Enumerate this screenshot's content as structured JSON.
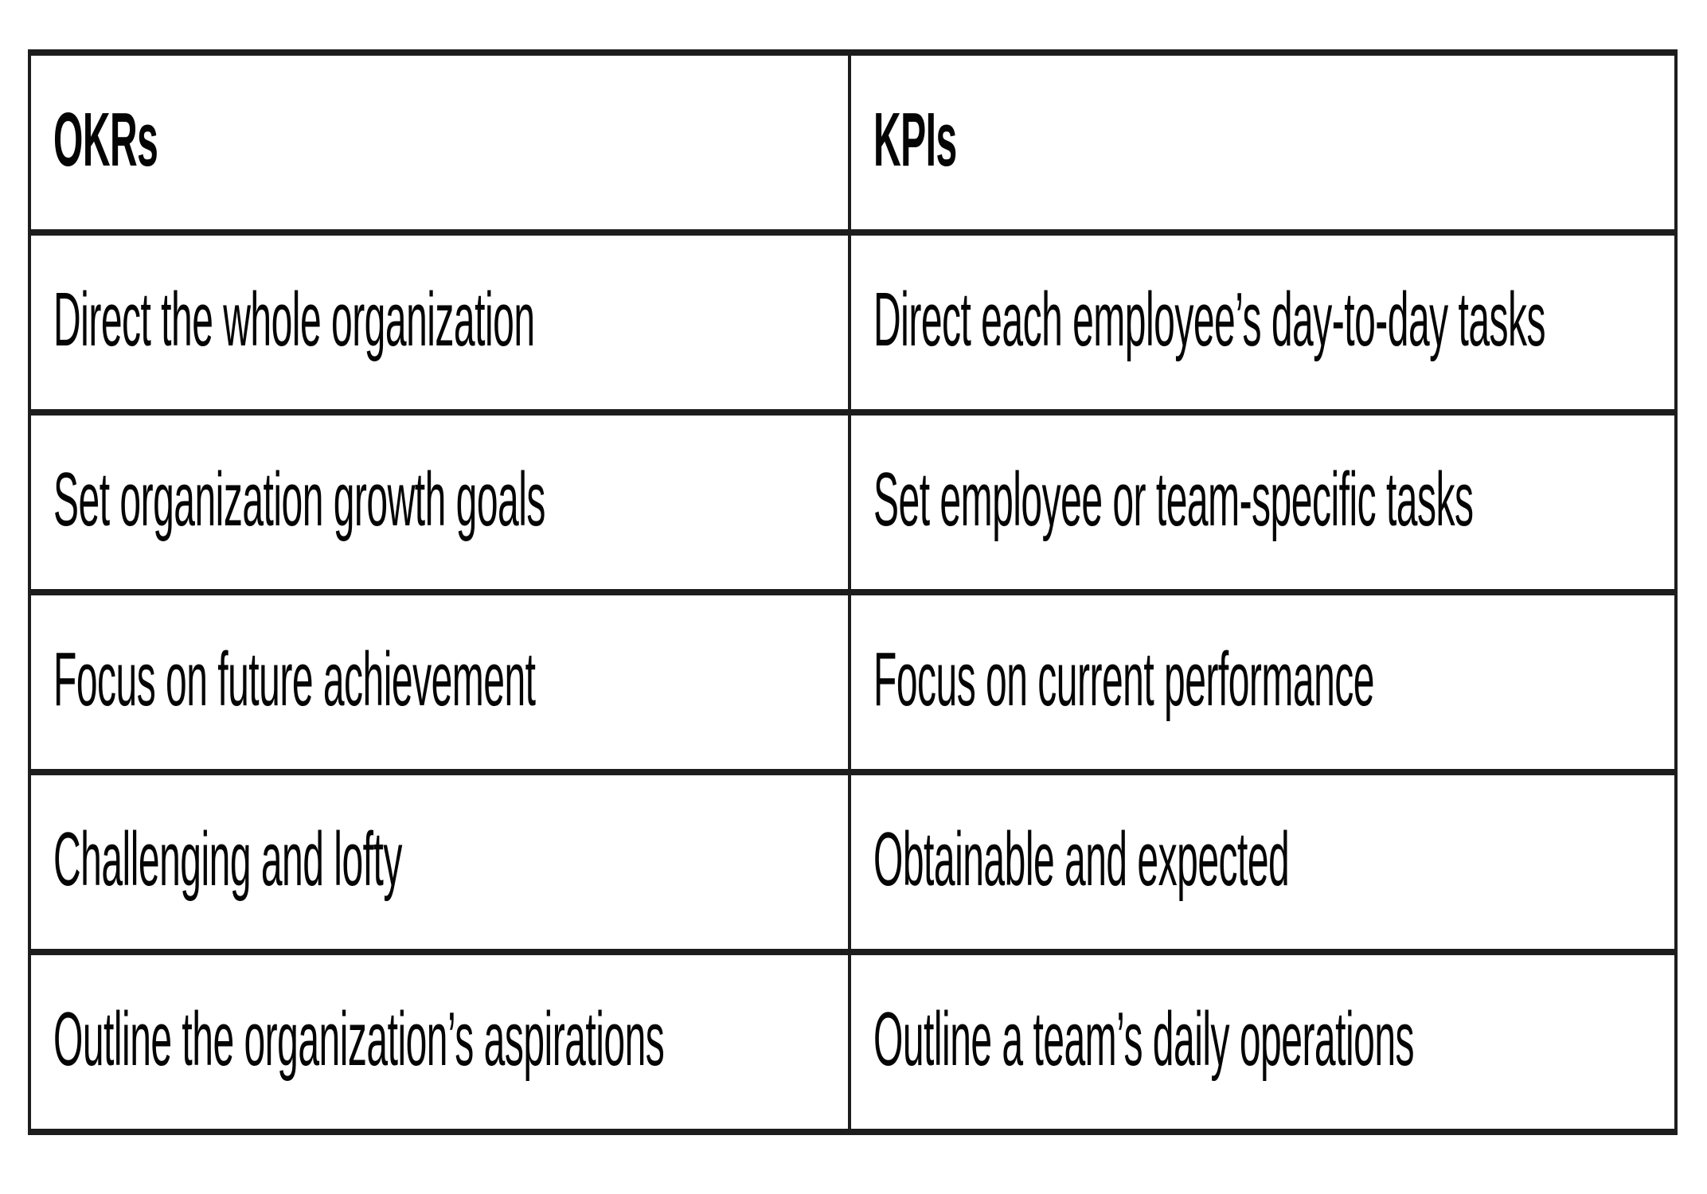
{
  "page": {
    "background_color": "#ffffff",
    "text_color": "#000000",
    "border_color": "#1d1d1d"
  },
  "table": {
    "header": {
      "okr": "OKRs",
      "kpi": "KPIs"
    },
    "rows": [
      {
        "okr": "Direct the whole organization",
        "kpi": "Direct each employee’s day-to-day tasks"
      },
      {
        "okr": "Set organization growth goals",
        "kpi": "Set employee or team-specific tasks"
      },
      {
        "okr": "Focus on future achievement",
        "kpi": "Focus on current performance"
      },
      {
        "okr": "Challenging and lofty",
        "kpi": "Obtainable and expected"
      },
      {
        "okr": "Outline the organization’s aspirations",
        "kpi": "Outline a team’s daily operations"
      }
    ]
  }
}
